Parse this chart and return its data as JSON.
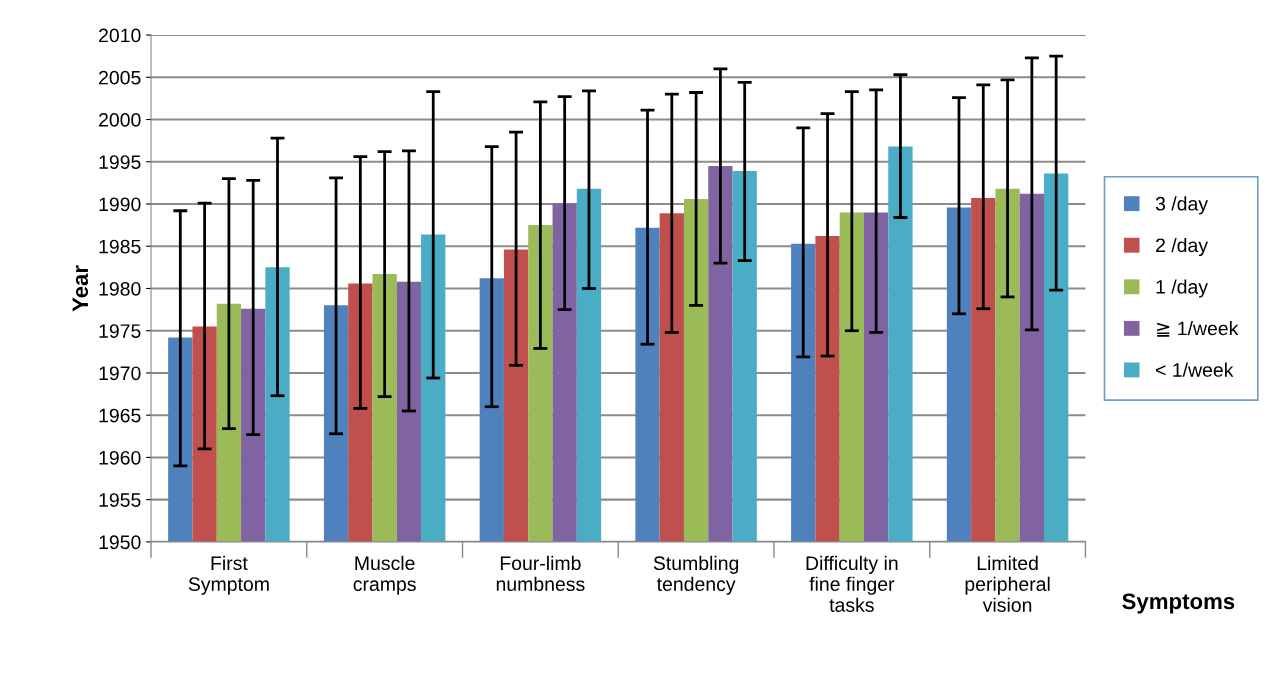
{
  "chart_data": {
    "type": "bar",
    "ylabel": "Year",
    "xlabel": "Symptoms",
    "categories": [
      "First\nSymptom",
      "Muscle\ncramps",
      "Four-limb\nnumbness",
      "Stumbling\ntendency",
      "Difficulty in\nfine finger\ntasks",
      "Limited\nperipheral\nvision"
    ],
    "series": [
      {
        "name": "3 /day",
        "color": "#4f81bd",
        "values": [
          1974.2,
          1978.0,
          1981.2,
          1987.2,
          1985.3,
          1989.6
        ],
        "errors": [
          [
            1959.0,
            1989.2
          ],
          [
            1962.8,
            1993.1
          ],
          [
            1966.0,
            1996.8
          ],
          [
            1973.4,
            2001.1
          ],
          [
            1971.9,
            1999.0
          ],
          [
            1977.0,
            2002.6
          ]
        ]
      },
      {
        "name": "2 /day",
        "color": "#c0504d",
        "values": [
          1975.5,
          1980.6,
          1984.6,
          1988.9,
          1986.2,
          1990.7
        ],
        "errors": [
          [
            1961.0,
            1990.1
          ],
          [
            1965.8,
            1995.6
          ],
          [
            1970.9,
            1998.5
          ],
          [
            1974.8,
            2003.0
          ],
          [
            1972.0,
            2000.7
          ],
          [
            1977.6,
            2004.1
          ]
        ]
      },
      {
        "name": "1 /day",
        "color": "#9bbb59",
        "values": [
          1978.2,
          1981.7,
          1987.5,
          1990.6,
          1989.0,
          1991.8
        ],
        "errors": [
          [
            1963.4,
            1993.0
          ],
          [
            1967.2,
            1996.2
          ],
          [
            1972.9,
            2002.1
          ],
          [
            1978.0,
            2003.2
          ],
          [
            1975.0,
            2003.3
          ],
          [
            1979.0,
            2004.7
          ]
        ]
      },
      {
        "name": "≧ 1/week",
        "color": "#8064a2",
        "values": [
          1977.6,
          1980.8,
          1990.1,
          1994.5,
          1989.0,
          1991.2
        ],
        "errors": [
          [
            1962.7,
            1992.8
          ],
          [
            1965.5,
            1996.3
          ],
          [
            1977.5,
            2002.7
          ],
          [
            1983.0,
            2006.0
          ],
          [
            1974.8,
            2003.5
          ],
          [
            1975.1,
            2007.3
          ]
        ]
      },
      {
        "name": "< 1/week",
        "color": "#4bacc6",
        "values": [
          1982.5,
          1986.4,
          1991.8,
          1993.9,
          1996.8,
          1993.6
        ],
        "errors": [
          [
            1967.3,
            1997.8
          ],
          [
            1969.4,
            2003.3
          ],
          [
            1980.0,
            2003.4
          ],
          [
            1983.3,
            2004.4
          ],
          [
            1988.4,
            2005.3
          ],
          [
            1979.8,
            2007.5
          ]
        ]
      }
    ],
    "ylim": [
      1950,
      2010
    ],
    "yticks": [
      1950,
      1955,
      1960,
      1965,
      1970,
      1975,
      1980,
      1985,
      1990,
      1995,
      2000,
      2005,
      2010
    ],
    "grid": "y",
    "legend": "right"
  }
}
